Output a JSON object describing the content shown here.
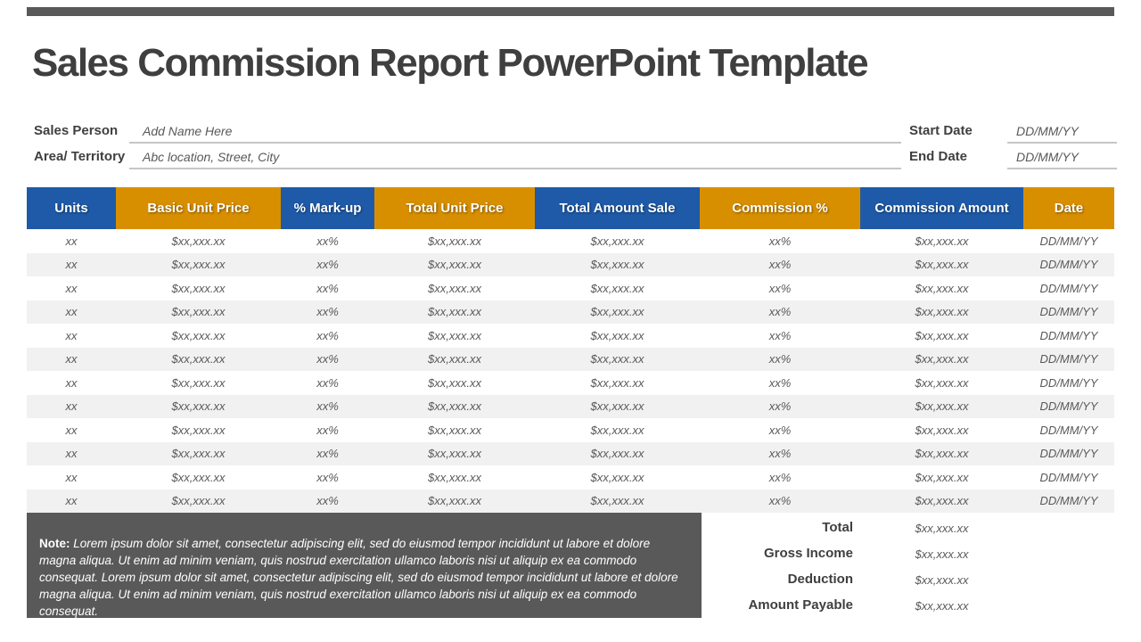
{
  "slide": {
    "title": "Sales Commission Report PowerPoint Template"
  },
  "form": {
    "fields": [
      {
        "label": "Sales Person",
        "value": "Add Name Here"
      },
      {
        "label": "Area/ Territory",
        "value": "Abc location, Street, City"
      },
      {
        "label": "Start Date",
        "value": "DD/MM/YY"
      },
      {
        "label": "End Date",
        "value": "DD/MM/YY"
      }
    ]
  },
  "table": {
    "columns": [
      {
        "label": "Units",
        "color": "blue"
      },
      {
        "label": "Basic Unit Price",
        "color": "orange"
      },
      {
        "label": "% Mark-up",
        "color": "blue"
      },
      {
        "label": "Total Unit Price",
        "color": "orange"
      },
      {
        "label": "Total Amount Sale",
        "color": "blue"
      },
      {
        "label": "Commission %",
        "color": "orange"
      },
      {
        "label": "Commission Amount",
        "color": "blue"
      },
      {
        "label": "Date",
        "color": "orange"
      }
    ],
    "row_template": [
      "xx",
      "$xx,xxx.xx",
      "xx%",
      "$xx,xxx.xx",
      "$xx,xxx.xx",
      "xx%",
      "$xx,xxx.xx",
      "DD/MM/YY"
    ],
    "row_count": 12
  },
  "note": {
    "label": "Note:",
    "text": "Lorem ipsum dolor sit amet, consectetur adipiscing elit, sed do eiusmod tempor incididunt ut labore et dolore magna aliqua. Ut enim ad minim veniam, quis nostrud exercitation ullamco laboris nisi ut aliquip ex ea commodo consequat. Lorem ipsum dolor sit amet, consectetur adipiscing elit, sed do eiusmod tempor incididunt ut labore et dolore magna aliqua. Ut enim ad minim veniam, quis nostrud exercitation ullamco laboris nisi ut aliquip ex ea commodo consequat."
  },
  "summary": {
    "rows": [
      {
        "label": "Total",
        "value": "$xx,xxx.xx"
      },
      {
        "label": "Gross Income",
        "value": "$xx,xxx.xx"
      },
      {
        "label": "Deduction",
        "value": "$xx,xxx.xx"
      },
      {
        "label": "Amount Payable",
        "value": "$xx,xxx.xx"
      }
    ]
  },
  "colors": {
    "header_blue": "#1e5aa8",
    "header_orange": "#d78f00",
    "title_gray": "#3f3f3f",
    "note_bg": "#595959",
    "alt_row": "#f1f1f1"
  }
}
